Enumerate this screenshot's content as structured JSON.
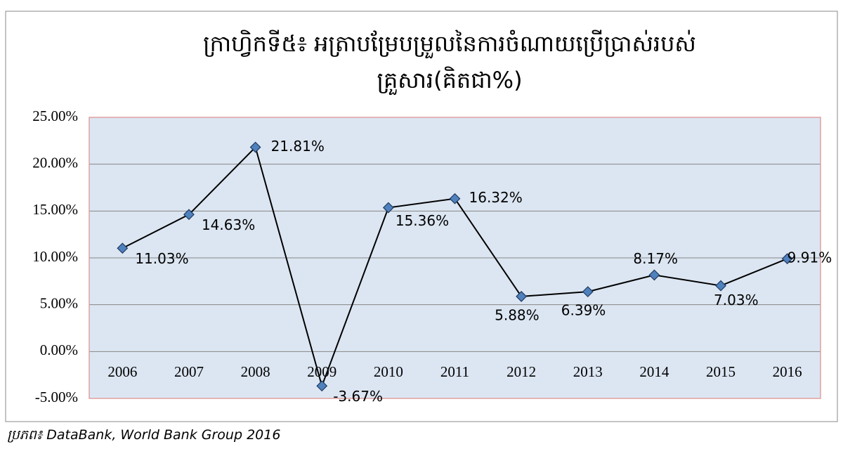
{
  "chart_data": {
    "type": "line",
    "title": "ក្រាហ្វិកទី៥៖ អត្រាបម្រែបម្រួលនៃការចំណាយប្រើប្រាស់របស់គ្រួសារ(គិតជា%)",
    "source": "ប្រភព៖ DataBank, World Bank Group 2016",
    "categories": [
      "2006",
      "2007",
      "2008",
      "2009",
      "2010",
      "2011",
      "2012",
      "2013",
      "2014",
      "2015",
      "2016"
    ],
    "values": [
      11.03,
      14.63,
      21.81,
      -3.67,
      15.36,
      16.32,
      5.88,
      6.39,
      8.17,
      7.03,
      9.91
    ],
    "value_labels": [
      "11.03%",
      "14.63%",
      "21.81%",
      "-3.67%",
      "15.36%",
      "16.32%",
      "5.88%",
      "6.39%",
      "8.17%",
      "7.03%",
      "9.91%"
    ],
    "color": "#000000",
    "marker_color": "#4f81bd",
    "ylim": [
      -5,
      25
    ],
    "yticks": [
      {
        "value": -5,
        "label": "-5.00%"
      },
      {
        "value": 0,
        "label": "0.00%"
      },
      {
        "value": 5,
        "label": "5.00%"
      },
      {
        "value": 10,
        "label": "10.00%"
      },
      {
        "value": 15,
        "label": "15.00%"
      },
      {
        "value": 20,
        "label": "20.00%"
      },
      {
        "value": 25,
        "label": "25.00%"
      }
    ],
    "grid": true
  }
}
